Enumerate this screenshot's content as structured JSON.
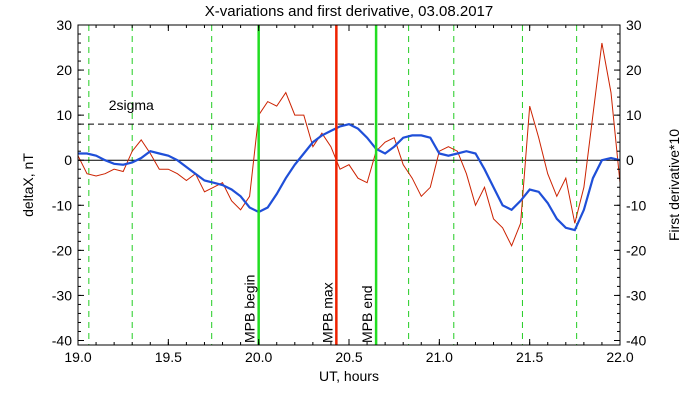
{
  "chart_data": {
    "type": "line",
    "title": "X-variations and first derivative, 03.08.2017",
    "xlabel": "UT, hours",
    "ylabel_left": "deltaX, nT",
    "ylabel_right": "First derivative*10",
    "xlim": [
      19.0,
      22.0
    ],
    "ylim": [
      -41,
      30
    ],
    "x_ticks": [
      "19.0",
      "19.5",
      "20.0",
      "20.5",
      "21.0",
      "21.5",
      "22.0"
    ],
    "x_tick_values": [
      19.0,
      19.5,
      20.0,
      20.5,
      21.0,
      21.5,
      22.0
    ],
    "y_ticks": [
      "30",
      "20",
      "10",
      "0",
      "-10",
      "-20",
      "-30",
      "-40"
    ],
    "y_tick_values": [
      30,
      20,
      10,
      0,
      -10,
      -20,
      -30,
      -40
    ],
    "colors": {
      "deltaX": "#1f4fd8",
      "derivative": "#cc2200",
      "mpb_begin_end": "#22dd22",
      "mpb_max": "#ee2200",
      "dashed_vertical": "#22cc22",
      "axes": "#000000"
    },
    "series": [
      {
        "name": "deltaX, nT",
        "axis": "left",
        "x": [
          19.0,
          19.05,
          19.1,
          19.15,
          19.2,
          19.25,
          19.3,
          19.35,
          19.4,
          19.45,
          19.5,
          19.55,
          19.6,
          19.65,
          19.7,
          19.75,
          19.8,
          19.85,
          19.9,
          19.95,
          20.0,
          20.05,
          20.1,
          20.15,
          20.2,
          20.25,
          20.3,
          20.35,
          20.4,
          20.45,
          20.5,
          20.55,
          20.6,
          20.65,
          20.7,
          20.75,
          20.8,
          20.85,
          20.9,
          20.95,
          21.0,
          21.05,
          21.1,
          21.15,
          21.2,
          21.25,
          21.3,
          21.35,
          21.4,
          21.45,
          21.5,
          21.55,
          21.6,
          21.65,
          21.7,
          21.75,
          21.8,
          21.85,
          21.9,
          21.95,
          22.0
        ],
        "y": [
          1.5,
          1.5,
          1.0,
          0.0,
          -0.8,
          -1.0,
          -0.5,
          0.5,
          2.0,
          1.5,
          1.0,
          0.0,
          -1.5,
          -3.0,
          -4.5,
          -5.0,
          -5.5,
          -6.5,
          -8.0,
          -10.5,
          -11.5,
          -10.5,
          -7.5,
          -4.0,
          -1.0,
          1.5,
          4.0,
          5.5,
          6.5,
          7.5,
          8.0,
          7.0,
          5.0,
          2.5,
          1.5,
          3.0,
          5.0,
          5.5,
          5.5,
          5.0,
          1.5,
          1.0,
          1.5,
          2.0,
          1.5,
          -2.0,
          -6.0,
          -10.0,
          -11.0,
          -9.0,
          -6.5,
          -7.0,
          -9.5,
          -13.0,
          -15.0,
          -15.5,
          -11.0,
          -4.0,
          0.0,
          0.5,
          0.0
        ]
      },
      {
        "name": "First derivative*10",
        "axis": "right",
        "x": [
          19.0,
          19.05,
          19.1,
          19.15,
          19.2,
          19.25,
          19.3,
          19.35,
          19.4,
          19.45,
          19.5,
          19.55,
          19.6,
          19.65,
          19.7,
          19.75,
          19.8,
          19.85,
          19.9,
          19.95,
          20.0,
          20.05,
          20.1,
          20.15,
          20.2,
          20.25,
          20.3,
          20.35,
          20.4,
          20.45,
          20.5,
          20.55,
          20.6,
          20.65,
          20.7,
          20.75,
          20.8,
          20.85,
          20.9,
          20.95,
          21.0,
          21.05,
          21.1,
          21.15,
          21.2,
          21.25,
          21.3,
          21.35,
          21.4,
          21.45,
          21.5,
          21.55,
          21.6,
          21.65,
          21.7,
          21.75,
          21.8,
          21.85,
          21.9,
          21.95,
          22.0
        ],
        "y": [
          1.0,
          -3.0,
          -3.5,
          -3.0,
          -2.0,
          -2.5,
          2.0,
          4.5,
          1.5,
          -2.0,
          -2.0,
          -3.0,
          -4.5,
          -3.0,
          -7.0,
          -6.0,
          -5.0,
          -9.0,
          -11.0,
          -8.0,
          10.0,
          13.0,
          12.0,
          15.0,
          10.0,
          10.0,
          3.0,
          6.0,
          3.0,
          -2.0,
          -1.0,
          -4.0,
          -5.0,
          2.0,
          4.0,
          5.0,
          -1.0,
          -4.0,
          -8.0,
          -6.0,
          2.0,
          3.0,
          2.0,
          -3.0,
          -10.0,
          -6.0,
          -13.0,
          -15.0,
          -19.0,
          -14.0,
          12.0,
          5.0,
          -3.0,
          -8.0,
          -4.0,
          -14.0,
          -6.0,
          10.0,
          26.0,
          15.0,
          -5.0
        ]
      }
    ],
    "horizontal_lines": [
      {
        "value": 8.0,
        "style": "dashed",
        "label": "2sigma"
      },
      {
        "value": 0.0,
        "style": "solid",
        "label": ""
      }
    ],
    "vertical_dashed_x": [
      19.06,
      19.3,
      19.74,
      20.83,
      21.08,
      21.46,
      21.76
    ],
    "markers": [
      {
        "x": 20.0,
        "label": "MPB begin",
        "color_key": "mpb_begin_end"
      },
      {
        "x": 20.43,
        "label": "MPB max",
        "color_key": "mpb_max"
      },
      {
        "x": 20.65,
        "label": "MPB end",
        "color_key": "mpb_begin_end"
      }
    ]
  }
}
